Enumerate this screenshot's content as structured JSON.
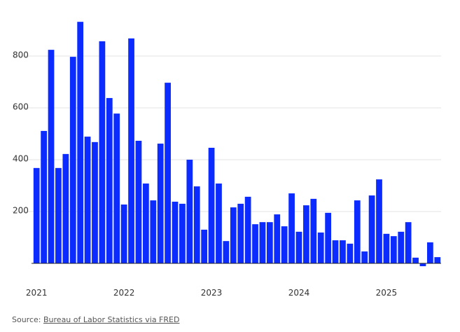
{
  "chart_data": {
    "type": "bar",
    "categories": [
      "2021",
      null,
      null,
      null,
      null,
      null,
      null,
      null,
      null,
      null,
      null,
      null,
      "2022",
      null,
      null,
      null,
      null,
      null,
      null,
      null,
      null,
      null,
      null,
      null,
      "2023",
      null,
      null,
      null,
      null,
      null,
      null,
      null,
      null,
      null,
      null,
      null,
      "2024",
      null,
      null,
      null,
      null,
      null,
      null,
      null,
      null,
      null,
      null,
      null,
      "2025",
      null,
      null,
      null,
      null,
      null,
      null,
      null
    ],
    "values": [
      368,
      511,
      824,
      368,
      422,
      797,
      932,
      489,
      468,
      857,
      638,
      578,
      227,
      868,
      473,
      308,
      243,
      462,
      697,
      238,
      230,
      400,
      297,
      130,
      446,
      308,
      86,
      216,
      230,
      257,
      151,
      159,
      159,
      189,
      143,
      270,
      122,
      224,
      249,
      119,
      195,
      89,
      89,
      76,
      243,
      46,
      262,
      324,
      114,
      105,
      122,
      159,
      22,
      -11,
      81,
      24
    ],
    "color": "#0b2bff",
    "ylim": [
      -50,
      950
    ],
    "yticks": [
      200,
      400,
      600,
      800
    ],
    "grid": true
  },
  "source": {
    "label": "Source:",
    "link": "Bureau of Labor Statistics via FRED"
  }
}
